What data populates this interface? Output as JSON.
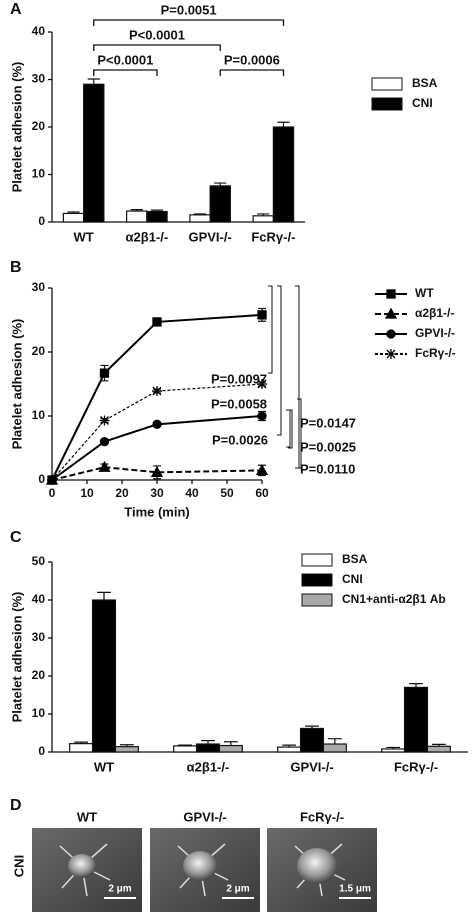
{
  "chart_data": [
    {
      "type": "bar",
      "panel": "A",
      "ylabel": "Platelet adhesion (%)",
      "categories": [
        "WT",
        "α2β1-/-",
        "GPVI-/-",
        "FcRγ-/-"
      ],
      "series": [
        {
          "name": "BSA",
          "color": "#ffffff",
          "values": [
            1.8,
            2.3,
            1.5,
            1.3
          ],
          "errors": [
            0.3,
            0.3,
            0.2,
            0.4
          ]
        },
        {
          "name": "CNI",
          "color": "#000000",
          "values": [
            29,
            2.2,
            7.6,
            20
          ],
          "errors": [
            1.1,
            0.3,
            0.6,
            1.0
          ]
        }
      ],
      "ylim": [
        0,
        40
      ],
      "yticks": [
        0,
        10,
        20,
        30,
        40
      ],
      "legend": "right",
      "annotations": [
        "P=0.0051",
        "P<0.0001",
        "P<0.0001",
        "P=0.0006"
      ]
    },
    {
      "type": "line",
      "panel": "B",
      "ylabel": "Platelet adhesion (%)",
      "xlabel": "Time (min)",
      "x": [
        0,
        15,
        30,
        60
      ],
      "series": [
        {
          "name": "WT",
          "color": "#000000",
          "marker": "square",
          "dash": "solid",
          "values": [
            0,
            16.7,
            24.7,
            25.8
          ],
          "errors": [
            0,
            1.2,
            0.3,
            1.0
          ]
        },
        {
          "name": "α2β1-/-",
          "color": "#000000",
          "marker": "triangle",
          "dash": "dashed",
          "values": [
            0,
            2,
            1.2,
            1.5
          ],
          "errors": [
            0,
            0.5,
            1.0,
            0.8
          ]
        },
        {
          "name": "GPVI-/-",
          "color": "#000000",
          "marker": "circle",
          "dash": "solid",
          "values": [
            0,
            6,
            8.7,
            10
          ],
          "errors": [
            0,
            0.3,
            0.3,
            0.7
          ]
        },
        {
          "name": "FcRγ-/-",
          "color": "#000000",
          "marker": "star",
          "dash": "dotted",
          "values": [
            0,
            9.3,
            13.9,
            15
          ],
          "errors": [
            0,
            0.3,
            0.3,
            0.3
          ]
        }
      ],
      "xlim": [
        0,
        60
      ],
      "xticks": [
        0,
        10,
        20,
        30,
        40,
        50,
        60
      ],
      "ylim": [
        0,
        30
      ],
      "yticks": [
        0,
        10,
        20,
        30
      ],
      "legend": "right",
      "annotations": [
        "P=0.0097",
        "P=0.0058",
        "P=0.0147",
        "P=0.0025",
        "P=0.0026",
        "P=0.0110"
      ]
    },
    {
      "type": "bar",
      "panel": "C",
      "ylabel": "Platelet adhesion (%)",
      "categories": [
        "WT",
        "α2β1-/-",
        "GPVI-/-",
        "FcRγ-/-"
      ],
      "series": [
        {
          "name": "BSA",
          "color": "#ffffff",
          "values": [
            2.2,
            1.6,
            1.3,
            0.8
          ],
          "errors": [
            0.4,
            0.2,
            0.5,
            0.4
          ]
        },
        {
          "name": "CNI",
          "color": "#000000",
          "values": [
            40,
            2.1,
            6.2,
            17
          ],
          "errors": [
            2.0,
            0.9,
            0.6,
            1.0
          ]
        },
        {
          "name": "CN1+anti-α2β1 Ab",
          "color": "#aaaaaa",
          "values": [
            1.4,
            1.7,
            2.1,
            1.5
          ],
          "errors": [
            0.5,
            1.0,
            1.4,
            0.5
          ]
        }
      ],
      "ylim": [
        0,
        50
      ],
      "yticks": [
        0,
        10,
        20,
        30,
        40,
        50
      ],
      "legend": "right",
      "annotations": []
    }
  ],
  "micrographs": {
    "panel": "D",
    "row_label": "CNI",
    "images": [
      {
        "label": "WT",
        "scale": "2 μm"
      },
      {
        "label": "GPVI-/-",
        "scale": "2 μm"
      },
      {
        "label": "FcRγ-/-",
        "scale": "1.5 μm"
      }
    ]
  }
}
